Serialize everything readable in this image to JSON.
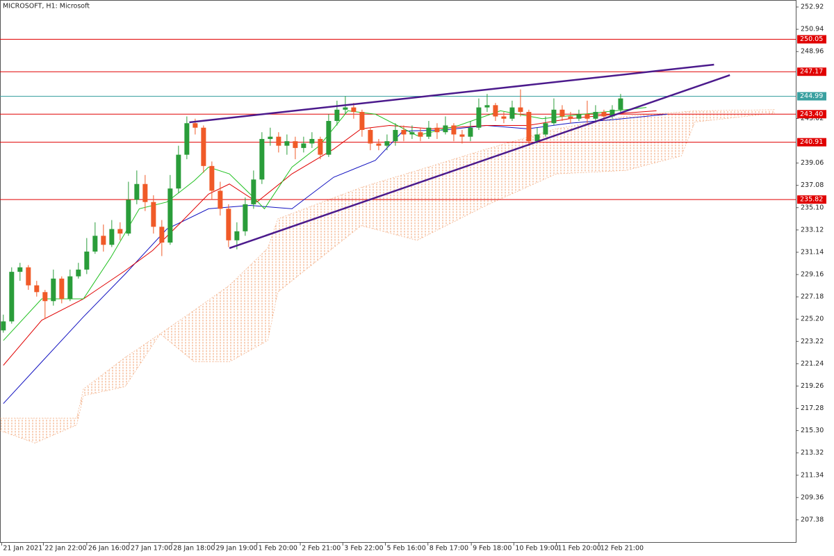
{
  "chart_data": {
    "type": "candlestick",
    "title": "MICROSOFT, H1:  Microsoft",
    "xlim": [
      -0.4,
      95
    ],
    "ylim": [
      205.4,
      253.54
    ],
    "xticks": [
      {
        "value": -0.2,
        "label": "21 Jan 2021"
      },
      {
        "value": 4.8,
        "label": "22 Jan 22:00"
      },
      {
        "value": 10,
        "label": "26 Jan 16:00"
      },
      {
        "value": 15.1,
        "label": "27 Jan 17:00"
      },
      {
        "value": 20.2,
        "label": "28 Jan 18:00"
      },
      {
        "value": 25.3,
        "label": "29 Jan 19:00"
      },
      {
        "value": 30.4,
        "label": "1 Feb 20:00"
      },
      {
        "value": 35.6,
        "label": "2 Feb 21:00"
      },
      {
        "value": 40.7,
        "label": "3 Feb 22:00"
      },
      {
        "value": 45.8,
        "label": "5 Feb 16:00"
      },
      {
        "value": 50.9,
        "label": "8 Feb 17:00"
      },
      {
        "value": 56.1,
        "label": "9 Feb 18:00"
      },
      {
        "value": 61.2,
        "label": "10 Feb 19:00"
      },
      {
        "value": 66.3,
        "label": "11 Feb 20:00"
      },
      {
        "value": 71.4,
        "label": "12 Feb 21:00"
      }
    ],
    "yticks": [
      252.92,
      250.94,
      248.96,
      243.02,
      239.06,
      237.08,
      {
        "value": 235.1,
        "label": "235.10"
      },
      233.12,
      231.14,
      229.16,
      227.18,
      {
        "value": 225.2,
        "label": "225.20"
      },
      223.22,
      221.24,
      219.26,
      217.28,
      {
        "value": 215.3,
        "label": "215.30"
      },
      213.32,
      211.34,
      209.36,
      207.38
    ],
    "up_color": "#2a9d3a",
    "down_color": "#f05a28",
    "open": [
      224.2,
      225.0,
      229.4,
      229.8,
      228.2,
      227.6,
      226.8,
      228.8,
      227.0,
      229.0,
      229.6,
      231.2,
      232.6,
      231.8,
      233.2,
      232.8,
      235.8,
      237.2,
      235.6,
      233.4,
      232.0,
      236.8,
      239.8,
      242.6,
      242.2,
      238.8,
      236.6,
      235.0,
      232.2,
      233.0,
      235.4,
      237.6,
      241.2,
      241.4,
      240.6,
      241.0,
      240.4,
      240.8,
      241.2,
      239.8,
      242.8,
      243.8,
      244.0,
      243.6,
      242.0,
      240.8,
      240.6,
      241.0,
      242.0,
      241.6,
      241.8,
      241.4,
      242.2,
      241.8,
      242.4,
      241.6,
      241.4,
      242.2,
      244.0,
      244.2,
      243.2,
      243.0,
      244.0,
      243.6,
      241.0,
      241.6,
      242.6,
      243.8,
      243.2,
      243.0,
      243.4,
      243.0,
      243.6,
      243.2,
      243.8
    ],
    "high": [
      225.6,
      229.8,
      230.2,
      230.0,
      228.6,
      227.8,
      229.6,
      229.0,
      229.6,
      230.2,
      232.4,
      233.8,
      233.6,
      234.0,
      233.8,
      237.4,
      238.4,
      238.0,
      236.2,
      234.0,
      238.0,
      240.6,
      243.2,
      243.0,
      242.4,
      239.2,
      237.4,
      235.4,
      233.8,
      236.0,
      238.4,
      241.8,
      242.2,
      241.8,
      241.6,
      241.4,
      241.4,
      241.8,
      241.4,
      243.4,
      244.6,
      245.0,
      244.4,
      243.8,
      242.2,
      241.2,
      241.6,
      242.6,
      242.4,
      242.4,
      242.2,
      242.8,
      242.6,
      243.2,
      242.6,
      242.0,
      242.8,
      244.8,
      245.2,
      244.4,
      243.6,
      244.6,
      245.6,
      243.8,
      242.2,
      243.2,
      244.8,
      244.2,
      243.6,
      243.8,
      244.6,
      244.2,
      243.8,
      244.2,
      245.2
    ],
    "low": [
      224.0,
      224.8,
      228.6,
      227.8,
      227.2,
      225.2,
      226.4,
      226.6,
      226.8,
      228.8,
      229.2,
      231.0,
      231.2,
      231.6,
      232.2,
      232.6,
      235.4,
      234.8,
      232.8,
      230.8,
      231.8,
      236.4,
      239.4,
      241.6,
      238.2,
      235.8,
      234.4,
      231.6,
      231.4,
      232.6,
      235.0,
      237.2,
      240.6,
      240.0,
      239.8,
      239.4,
      240.0,
      240.4,
      239.4,
      239.6,
      242.4,
      243.4,
      243.0,
      241.4,
      240.2,
      240.2,
      240.2,
      240.6,
      241.0,
      241.2,
      241.0,
      241.2,
      241.2,
      241.6,
      241.0,
      240.8,
      241.0,
      242.0,
      243.6,
      242.8,
      242.6,
      242.8,
      243.2,
      240.6,
      240.8,
      241.4,
      242.4,
      242.8,
      242.6,
      242.8,
      242.6,
      242.8,
      242.8,
      243.0,
      243.6
    ],
    "close": [
      225.0,
      229.4,
      229.8,
      228.2,
      227.6,
      226.8,
      228.8,
      227.0,
      229.0,
      229.6,
      231.2,
      232.6,
      231.8,
      233.2,
      232.8,
      235.8,
      237.2,
      235.6,
      233.4,
      232.0,
      236.8,
      239.8,
      242.6,
      242.2,
      238.8,
      236.6,
      235.0,
      232.2,
      233.0,
      235.4,
      237.6,
      241.2,
      241.4,
      240.6,
      241.0,
      240.4,
      240.8,
      241.2,
      239.8,
      242.8,
      243.8,
      244.0,
      243.6,
      242.0,
      240.8,
      240.6,
      241.0,
      242.0,
      241.6,
      241.8,
      241.4,
      242.2,
      241.8,
      242.4,
      241.6,
      241.4,
      242.2,
      244.0,
      244.2,
      243.2,
      243.0,
      244.0,
      243.6,
      241.0,
      241.6,
      242.6,
      243.8,
      243.2,
      243.0,
      243.4,
      243.0,
      243.6,
      243.2,
      243.8,
      244.8
    ],
    "lines": [
      {
        "color": "#1010c0",
        "x": [
          0,
          4.6,
          9.6,
          14.6,
          19.6,
          24.6,
          29.6,
          34.6,
          39.6,
          44.6,
          47.9,
          52.9,
          57.9,
          62.9,
          67.9,
          72.9,
          79.6
        ],
        "values": [
          217.7,
          221.4,
          225.4,
          229.2,
          233.2,
          235.0,
          235.3,
          235.0,
          237.8,
          239.3,
          241.9,
          242.0,
          242.4,
          242.1,
          242.6,
          242.9,
          243.4
        ]
      },
      {
        "color": "#e00000",
        "x": [
          0,
          4.6,
          9.6,
          14.6,
          17.9,
          21.3,
          24.6,
          27.1,
          30.4,
          34.6,
          39.6,
          42.9,
          46.3,
          51.3,
          57.9,
          62.9,
          67.9,
          74.6,
          78.3
        ],
        "values": [
          221.1,
          225.1,
          227.0,
          229.5,
          231.3,
          233.8,
          236.3,
          237.2,
          235.6,
          238.1,
          240.3,
          242.1,
          242.4,
          242.1,
          242.4,
          242.4,
          243.0,
          243.5,
          243.7
        ]
      },
      {
        "color": "#20c020",
        "x": [
          0,
          4.6,
          9.6,
          12.9,
          16.3,
          19.6,
          22.9,
          24.6,
          27.1,
          29.6,
          31.3,
          34.6,
          37.9,
          41.3,
          44.6,
          49.6,
          54.6,
          59.6,
          64.6,
          69.6,
          77.1
        ],
        "values": [
          223.3,
          227.0,
          227.0,
          230.7,
          235.0,
          235.6,
          237.5,
          238.7,
          238.1,
          236.3,
          235.0,
          238.7,
          240.6,
          243.7,
          243.4,
          241.5,
          242.4,
          243.7,
          243.0,
          243.4,
          244.0
        ]
      }
    ],
    "cloud": {
      "color": "#f0a070",
      "x": [
        -0.4,
        3.8,
        8.8,
        9.6,
        14.6,
        18.8,
        22.9,
        27.1,
        31.7,
        32.9,
        42.9,
        49.6,
        57.9,
        66.3,
        74.6,
        81.3,
        82.9,
        92.5
      ],
      "upper": [
        216.4,
        216.4,
        216.4,
        219.0,
        221.8,
        223.9,
        226.0,
        228.2,
        231.5,
        234.1,
        236.9,
        238.4,
        240.3,
        242.1,
        243.2,
        243.6,
        243.7,
        243.8
      ],
      "lower": [
        215.3,
        214.2,
        215.8,
        218.4,
        219.2,
        223.9,
        221.4,
        221.4,
        223.3,
        227.6,
        233.5,
        232.2,
        235.3,
        238.1,
        238.4,
        239.7,
        242.7,
        243.5
      ]
    },
    "levels": [
      {
        "value": 250.05,
        "color": "#e00000"
      },
      {
        "value": 247.17,
        "color": "#e00000"
      },
      {
        "value": 244.99,
        "color": "#3aa0a0"
      },
      {
        "value": 243.4,
        "color": "#e00000",
        "label": "243.40"
      },
      {
        "value": 240.91,
        "color": "#e00000"
      },
      {
        "value": 235.82,
        "color": "#e00000"
      }
    ],
    "trendlines": [
      {
        "color": "#4b1a8c",
        "x": [
          22.3,
          85.2
        ],
        "values": [
          242.68,
          247.8
        ]
      },
      {
        "color": "#4b1a8c",
        "x": [
          27.1,
          87.1
        ],
        "values": [
          231.5,
          246.87
        ]
      }
    ]
  }
}
